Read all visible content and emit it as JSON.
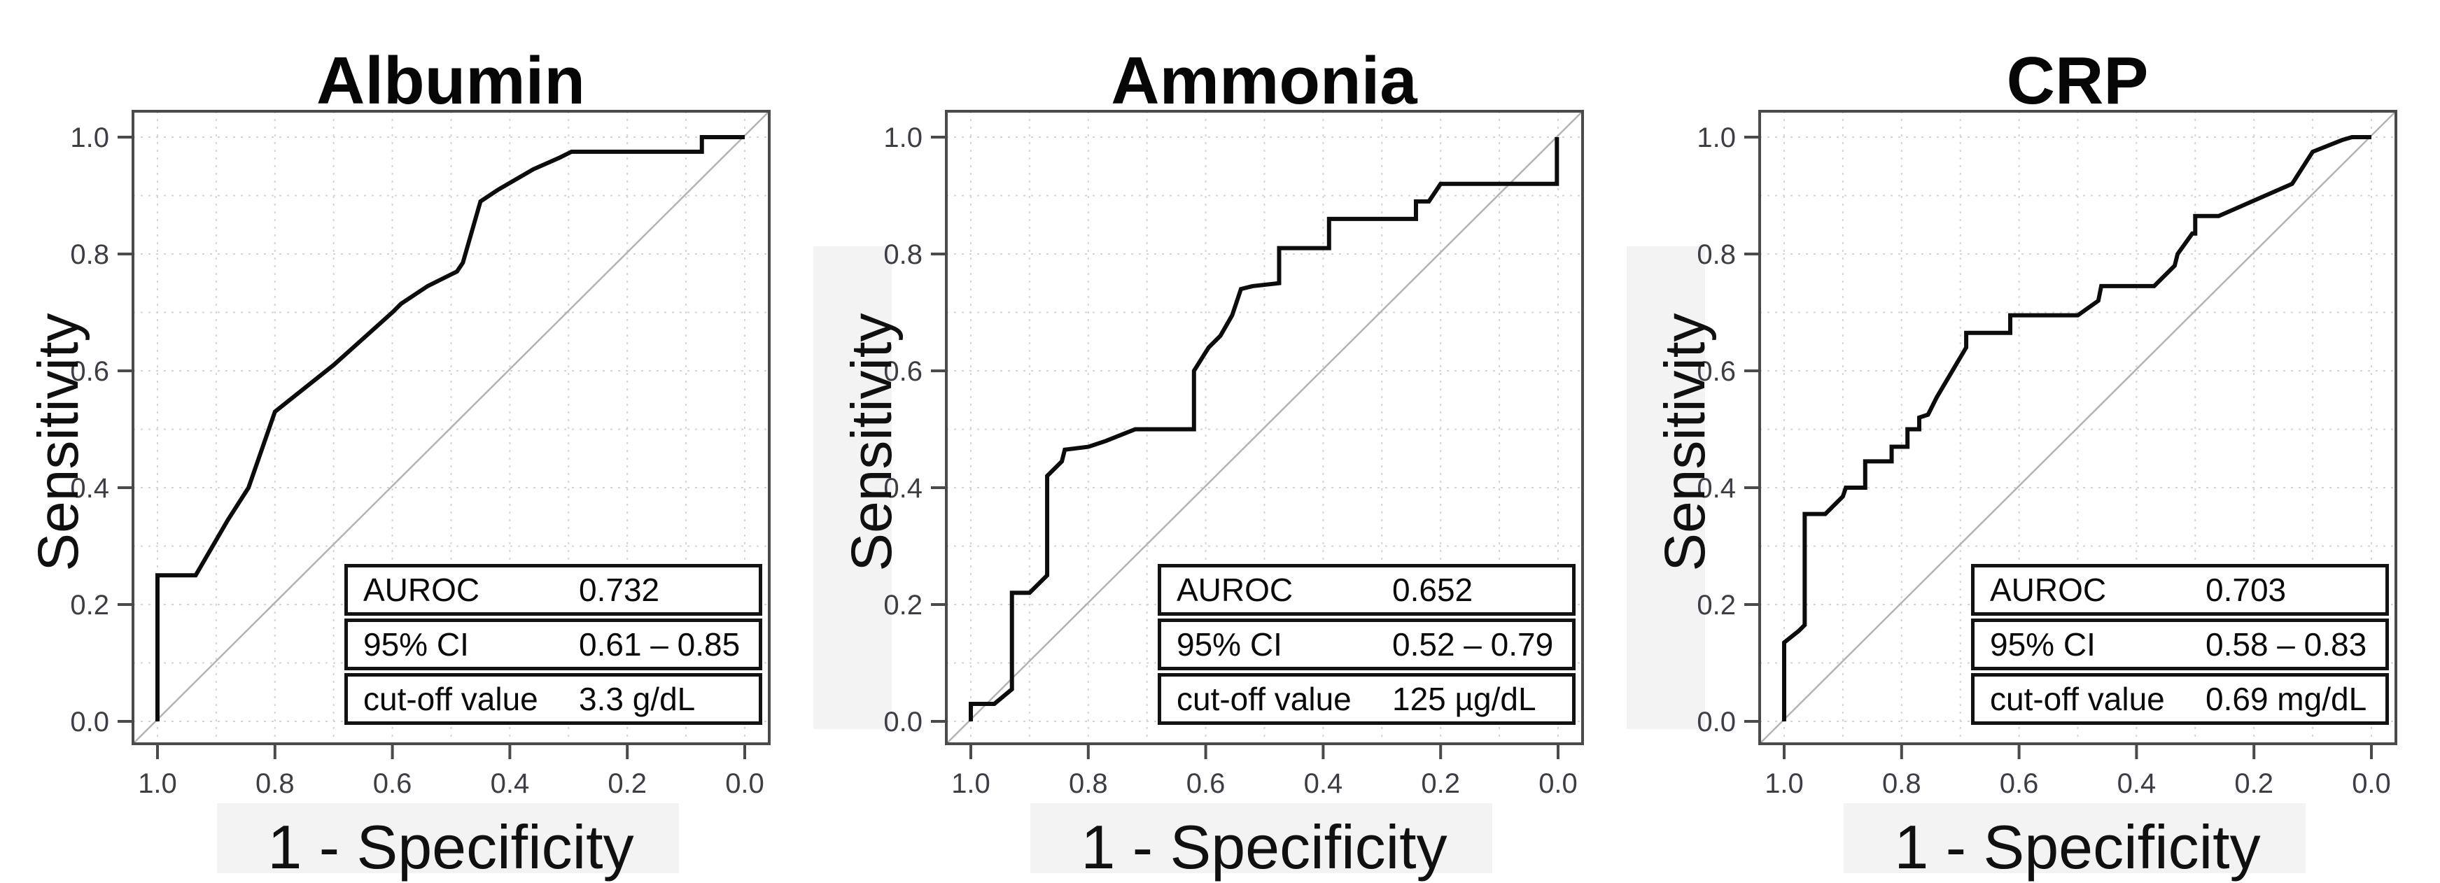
{
  "figure": {
    "background": "#ffffff",
    "curve_color": "#0c0c0c",
    "grid_color": "#d4d4d4",
    "axis_color": "#4a4a4a",
    "tick_label_color": "#3d3d46",
    "diagonal_color": "#b3b3b3"
  },
  "chart_data": [
    {
      "type": "line",
      "title": "Albumin",
      "xlabel": "1 - Specificity",
      "ylabel": "Sensitivity",
      "x_ticks": [
        1.0,
        0.8,
        0.6,
        0.4,
        0.2,
        0.0
      ],
      "y_ticks": [
        0.0,
        0.2,
        0.4,
        0.6,
        0.8,
        1.0
      ],
      "xlim": [
        1.0,
        0.0
      ],
      "ylim": [
        0.0,
        1.0
      ],
      "x_reversed": true,
      "grid_step": 0.1,
      "grid_on": true,
      "diagonal_reference": true,
      "roc_points": [
        [
          1.0,
          0.0
        ],
        [
          1.0,
          0.25
        ],
        [
          0.935,
          0.25
        ],
        [
          0.88,
          0.345
        ],
        [
          0.845,
          0.4
        ],
        [
          0.8,
          0.53
        ],
        [
          0.7,
          0.61
        ],
        [
          0.6,
          0.7
        ],
        [
          0.585,
          0.715
        ],
        [
          0.54,
          0.745
        ],
        [
          0.49,
          0.77
        ],
        [
          0.48,
          0.785
        ],
        [
          0.45,
          0.89
        ],
        [
          0.42,
          0.91
        ],
        [
          0.36,
          0.945
        ],
        [
          0.315,
          0.965
        ],
        [
          0.295,
          0.975
        ],
        [
          0.073,
          0.975
        ],
        [
          0.073,
          1.0
        ],
        [
          0.0,
          1.0
        ]
      ],
      "stats_table": {
        "rows": [
          {
            "label": "AUROC",
            "value": "0.732"
          },
          {
            "label": "95% CI",
            "value": "0.61 – 0.85"
          },
          {
            "label": "cut-off value",
            "value": "3.3 g/dL"
          }
        ]
      }
    },
    {
      "type": "line",
      "title": "Ammonia",
      "xlabel": "1 - Specificity",
      "ylabel": "Sensitivity",
      "x_ticks": [
        1.0,
        0.8,
        0.6,
        0.4,
        0.2,
        0.0
      ],
      "y_ticks": [
        0.0,
        0.2,
        0.4,
        0.6,
        0.8,
        1.0
      ],
      "xlim": [
        1.0,
        0.0
      ],
      "ylim": [
        0.0,
        1.0
      ],
      "x_reversed": true,
      "grid_step": 0.1,
      "grid_on": true,
      "diagonal_reference": true,
      "roc_points": [
        [
          1.0,
          0.0
        ],
        [
          1.0,
          0.03
        ],
        [
          0.96,
          0.03
        ],
        [
          0.93,
          0.055
        ],
        [
          0.93,
          0.22
        ],
        [
          0.9,
          0.22
        ],
        [
          0.87,
          0.25
        ],
        [
          0.87,
          0.42
        ],
        [
          0.845,
          0.445
        ],
        [
          0.84,
          0.465
        ],
        [
          0.8,
          0.47
        ],
        [
          0.77,
          0.48
        ],
        [
          0.72,
          0.5
        ],
        [
          0.62,
          0.5
        ],
        [
          0.62,
          0.6
        ],
        [
          0.595,
          0.64
        ],
        [
          0.575,
          0.66
        ],
        [
          0.555,
          0.695
        ],
        [
          0.54,
          0.74
        ],
        [
          0.52,
          0.745
        ],
        [
          0.475,
          0.75
        ],
        [
          0.475,
          0.81
        ],
        [
          0.39,
          0.81
        ],
        [
          0.39,
          0.86
        ],
        [
          0.242,
          0.86
        ],
        [
          0.242,
          0.89
        ],
        [
          0.22,
          0.89
        ],
        [
          0.2,
          0.92
        ],
        [
          0.002,
          0.92
        ],
        [
          0.002,
          1.0
        ]
      ],
      "stats_table": {
        "rows": [
          {
            "label": "AUROC",
            "value": "0.652"
          },
          {
            "label": "95% CI",
            "value": "0.52 – 0.79"
          },
          {
            "label": "cut-off value",
            "value": "125 µg/dL"
          }
        ]
      }
    },
    {
      "type": "line",
      "title": "CRP",
      "xlabel": "1 - Specificity",
      "ylabel": "Sensitivity",
      "x_ticks": [
        1.0,
        0.8,
        0.6,
        0.4,
        0.2,
        0.0
      ],
      "y_ticks": [
        0.0,
        0.2,
        0.4,
        0.6,
        0.8,
        1.0
      ],
      "xlim": [
        1.0,
        0.0
      ],
      "ylim": [
        0.0,
        1.0
      ],
      "x_reversed": true,
      "grid_step": 0.1,
      "grid_on": true,
      "diagonal_reference": true,
      "roc_points": [
        [
          1.0,
          0.0
        ],
        [
          1.0,
          0.135
        ],
        [
          0.975,
          0.155
        ],
        [
          0.965,
          0.165
        ],
        [
          0.965,
          0.355
        ],
        [
          0.93,
          0.355
        ],
        [
          0.9,
          0.385
        ],
        [
          0.895,
          0.4
        ],
        [
          0.862,
          0.4
        ],
        [
          0.862,
          0.445
        ],
        [
          0.817,
          0.445
        ],
        [
          0.817,
          0.47
        ],
        [
          0.79,
          0.47
        ],
        [
          0.79,
          0.5
        ],
        [
          0.77,
          0.5
        ],
        [
          0.77,
          0.52
        ],
        [
          0.755,
          0.525
        ],
        [
          0.74,
          0.555
        ],
        [
          0.69,
          0.64
        ],
        [
          0.69,
          0.665
        ],
        [
          0.615,
          0.665
        ],
        [
          0.615,
          0.695
        ],
        [
          0.5,
          0.695
        ],
        [
          0.465,
          0.72
        ],
        [
          0.46,
          0.745
        ],
        [
          0.37,
          0.745
        ],
        [
          0.335,
          0.78
        ],
        [
          0.33,
          0.8
        ],
        [
          0.305,
          0.835
        ],
        [
          0.3,
          0.835
        ],
        [
          0.3,
          0.865
        ],
        [
          0.26,
          0.865
        ],
        [
          0.135,
          0.92
        ],
        [
          0.1,
          0.975
        ],
        [
          0.05,
          0.995
        ],
        [
          0.033,
          1.0
        ],
        [
          0.0,
          1.0
        ]
      ],
      "stats_table": {
        "rows": [
          {
            "label": "AUROC",
            "value": "0.703"
          },
          {
            "label": "95% CI",
            "value": "0.58 – 0.83"
          },
          {
            "label": "cut-off value",
            "value": "0.69 mg/dL"
          }
        ]
      }
    }
  ]
}
